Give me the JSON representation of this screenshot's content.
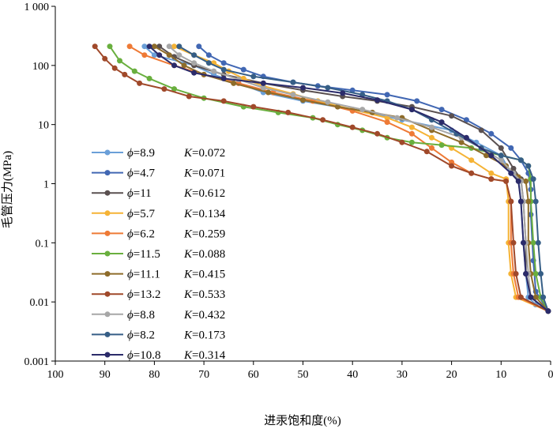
{
  "chart_data": {
    "type": "line",
    "title": "",
    "xlabel": "进汞饱和度(%)",
    "ylabel": "毛管压力(MPa)",
    "xlim": [
      100,
      0
    ],
    "x_reversed": true,
    "x_ticks": [
      "100",
      "90",
      "80",
      "70",
      "60",
      "50",
      "40",
      "30",
      "20",
      "10",
      "0"
    ],
    "ylim": [
      0.001,
      1000
    ],
    "y_scale": "log",
    "y_ticks": [
      "0.001",
      "0.01",
      "0.1",
      "1",
      "10",
      "100",
      "1 000"
    ],
    "grid": false,
    "legend_position": "left",
    "series": [
      {
        "name": "ϕ=8.9 K=0.072",
        "phi": "8.9",
        "k": "0.072",
        "color": "#6a9fd8",
        "points": [
          [
            82,
            210
          ],
          [
            80,
            150
          ],
          [
            72,
            100
          ],
          [
            68,
            70
          ],
          [
            63,
            50
          ],
          [
            58,
            35
          ],
          [
            50,
            25
          ],
          [
            40,
            18
          ],
          [
            30,
            12
          ],
          [
            20,
            8
          ],
          [
            15,
            5
          ],
          [
            10,
            3
          ],
          [
            8,
            1.5
          ],
          [
            6.5,
            1.2
          ],
          [
            6,
            0.5
          ],
          [
            5.5,
            0.1
          ],
          [
            5,
            0.03
          ],
          [
            4.5,
            0.012
          ],
          [
            3,
            0.009
          ],
          [
            0.5,
            0.007
          ]
        ]
      },
      {
        "name": "ϕ=4.7 K=0.071",
        "phi": "4.7",
        "k": "0.071",
        "color": "#4167b3",
        "points": [
          [
            71,
            210
          ],
          [
            69,
            150
          ],
          [
            66,
            110
          ],
          [
            62,
            85
          ],
          [
            58,
            65
          ],
          [
            52,
            52
          ],
          [
            47,
            45
          ],
          [
            40,
            38
          ],
          [
            33,
            32
          ],
          [
            27,
            25
          ],
          [
            22,
            18
          ],
          [
            17,
            12
          ],
          [
            12,
            7
          ],
          [
            8,
            4
          ],
          [
            6,
            2.5
          ],
          [
            4.5,
            1.5
          ],
          [
            4,
            0.8
          ],
          [
            4,
            0.3
          ],
          [
            3.5,
            0.05
          ],
          [
            3,
            0.015
          ],
          [
            0.5,
            0.007
          ]
        ]
      },
      {
        "name": "ϕ=11 K=0.612",
        "phi": "11",
        "k": "0.612",
        "color": "#5a5050",
        "points": [
          [
            79,
            210
          ],
          [
            76,
            140
          ],
          [
            72,
            100
          ],
          [
            66,
            70
          ],
          [
            58,
            50
          ],
          [
            50,
            38
          ],
          [
            42,
            30
          ],
          [
            35,
            25
          ],
          [
            28,
            20
          ],
          [
            20,
            14
          ],
          [
            14,
            8
          ],
          [
            10,
            4
          ],
          [
            7.5,
            1.8
          ],
          [
            6,
            1.2
          ],
          [
            5.5,
            0.5
          ],
          [
            5,
            0.1
          ],
          [
            5,
            0.03
          ],
          [
            4,
            0.012
          ],
          [
            0.5,
            0.007
          ]
        ]
      },
      {
        "name": "ϕ=5.7 K=0.134",
        "phi": "5.7",
        "k": "0.134",
        "color": "#f5b335",
        "points": [
          [
            76,
            210
          ],
          [
            72,
            150
          ],
          [
            68,
            110
          ],
          [
            65,
            80
          ],
          [
            62,
            60
          ],
          [
            58,
            45
          ],
          [
            52,
            33
          ],
          [
            47,
            25
          ],
          [
            40,
            18
          ],
          [
            33,
            13
          ],
          [
            28,
            9
          ],
          [
            24,
            6
          ],
          [
            20,
            4
          ],
          [
            16,
            2.5
          ],
          [
            12,
            1.5
          ],
          [
            9,
            1.2
          ],
          [
            8.5,
            0.5
          ],
          [
            8.5,
            0.1
          ],
          [
            8,
            0.03
          ],
          [
            7,
            0.012
          ],
          [
            0.5,
            0.007
          ]
        ]
      },
      {
        "name": "ϕ=6.2 K=0.259",
        "phi": "6.2",
        "k": "0.259",
        "color": "#ee7a36",
        "points": [
          [
            85,
            210
          ],
          [
            82,
            150
          ],
          [
            76,
            100
          ],
          [
            70,
            70
          ],
          [
            63,
            50
          ],
          [
            56,
            35
          ],
          [
            48,
            25
          ],
          [
            40,
            17
          ],
          [
            33,
            11
          ],
          [
            28,
            7
          ],
          [
            24,
            4
          ],
          [
            20,
            2.3
          ],
          [
            16,
            1.5
          ],
          [
            12,
            1.2
          ],
          [
            9,
            1.1
          ],
          [
            8,
            0.5
          ],
          [
            8,
            0.1
          ],
          [
            7.5,
            0.03
          ],
          [
            6.5,
            0.012
          ],
          [
            0.5,
            0.007
          ]
        ]
      },
      {
        "name": "ϕ=11.5 K=0.088",
        "phi": "11.5",
        "k": "0.088",
        "color": "#69af3e",
        "points": [
          [
            89,
            210
          ],
          [
            87,
            120
          ],
          [
            84,
            80
          ],
          [
            81,
            60
          ],
          [
            76,
            40
          ],
          [
            70,
            28
          ],
          [
            62,
            20
          ],
          [
            55,
            16
          ],
          [
            48,
            13
          ],
          [
            43,
            10
          ],
          [
            38,
            8
          ],
          [
            33,
            6
          ],
          [
            28,
            5
          ],
          [
            22,
            4.5
          ],
          [
            16,
            4
          ],
          [
            10,
            3
          ],
          [
            6,
            2.5
          ],
          [
            4.5,
            2
          ],
          [
            4,
            1.2
          ],
          [
            4,
            0.5
          ],
          [
            3.5,
            0.1
          ],
          [
            3,
            0.03
          ],
          [
            2,
            0.012
          ],
          [
            0.5,
            0.007
          ]
        ]
      },
      {
        "name": "ϕ=11.1 K=0.415",
        "phi": "11.1",
        "k": "0.415",
        "color": "#8e6c2a",
        "points": [
          [
            80,
            210
          ],
          [
            77,
            150
          ],
          [
            74,
            100
          ],
          [
            70,
            70
          ],
          [
            64,
            50
          ],
          [
            57,
            35
          ],
          [
            50,
            26
          ],
          [
            43,
            20
          ],
          [
            36,
            16
          ],
          [
            30,
            13
          ],
          [
            24,
            8
          ],
          [
            18,
            5
          ],
          [
            13,
            3
          ],
          [
            9,
            2
          ],
          [
            6.5,
            1.3
          ],
          [
            5,
            1.1
          ],
          [
            4.5,
            0.5
          ],
          [
            4.5,
            0.1
          ],
          [
            4,
            0.03
          ],
          [
            3,
            0.012
          ],
          [
            0.5,
            0.007
          ]
        ]
      },
      {
        "name": "ϕ=13.2 K=0.533",
        "phi": "13.2",
        "k": "0.533",
        "color": "#a0492a",
        "points": [
          [
            92,
            210
          ],
          [
            90,
            130
          ],
          [
            88,
            90
          ],
          [
            86,
            70
          ],
          [
            83,
            50
          ],
          [
            78,
            40
          ],
          [
            73,
            30
          ],
          [
            66,
            25
          ],
          [
            60,
            20
          ],
          [
            53,
            16
          ],
          [
            46,
            12
          ],
          [
            40,
            9
          ],
          [
            35,
            7
          ],
          [
            30,
            5
          ],
          [
            25,
            3.5
          ],
          [
            20,
            2
          ],
          [
            16,
            1.5
          ],
          [
            12,
            1.2
          ],
          [
            9,
            1.1
          ],
          [
            8,
            0.5
          ],
          [
            7.5,
            0.1
          ],
          [
            7,
            0.03
          ],
          [
            6,
            0.012
          ],
          [
            0.5,
            0.007
          ]
        ]
      },
      {
        "name": "ϕ=8.8 K=0.432",
        "phi": "8.8",
        "k": "0.432",
        "color": "#a7a7a7",
        "points": [
          [
            77,
            210
          ],
          [
            75,
            150
          ],
          [
            72,
            110
          ],
          [
            68,
            80
          ],
          [
            63,
            58
          ],
          [
            58,
            42
          ],
          [
            52,
            32
          ],
          [
            45,
            24
          ],
          [
            38,
            18
          ],
          [
            31,
            13
          ],
          [
            24,
            9
          ],
          [
            18,
            6
          ],
          [
            14,
            4
          ],
          [
            10,
            2.5
          ],
          [
            7.5,
            1.5
          ],
          [
            6,
            1.1
          ],
          [
            5.5,
            0.5
          ],
          [
            5,
            0.1
          ],
          [
            4.5,
            0.03
          ],
          [
            4,
            0.012
          ],
          [
            0.5,
            0.007
          ]
        ]
      },
      {
        "name": "ϕ=8.2 K=0.173",
        "phi": "8.2",
        "k": "0.173",
        "color": "#365e86",
        "points": [
          [
            75,
            210
          ],
          [
            72,
            150
          ],
          [
            69,
            110
          ],
          [
            66,
            85
          ],
          [
            60,
            65
          ],
          [
            52,
            52
          ],
          [
            45,
            42
          ],
          [
            38,
            32
          ],
          [
            33,
            25
          ],
          [
            28,
            18
          ],
          [
            24,
            12
          ],
          [
            19,
            7
          ],
          [
            14,
            4
          ],
          [
            10,
            3
          ],
          [
            6,
            2.5
          ],
          [
            4.5,
            2
          ],
          [
            3.5,
            1.2
          ],
          [
            3,
            0.5
          ],
          [
            2.5,
            0.1
          ],
          [
            2,
            0.03
          ],
          [
            1.5,
            0.012
          ],
          [
            0.5,
            0.007
          ]
        ]
      },
      {
        "name": "ϕ=10.8 K=0.314",
        "phi": "10.8",
        "k": "0.314",
        "color": "#2b2b6a",
        "points": [
          [
            81,
            210
          ],
          [
            79,
            150
          ],
          [
            76,
            100
          ],
          [
            72,
            75
          ],
          [
            66,
            60
          ],
          [
            58,
            50
          ],
          [
            50,
            42
          ],
          [
            42,
            34
          ],
          [
            35,
            26
          ],
          [
            28,
            18
          ],
          [
            22,
            11
          ],
          [
            17,
            6
          ],
          [
            12,
            3
          ],
          [
            8,
            1.5
          ],
          [
            6.5,
            1.1
          ],
          [
            6,
            0.5
          ],
          [
            5.5,
            0.1
          ],
          [
            5,
            0.03
          ],
          [
            4,
            0.012
          ],
          [
            0.5,
            0.007
          ]
        ]
      }
    ]
  }
}
